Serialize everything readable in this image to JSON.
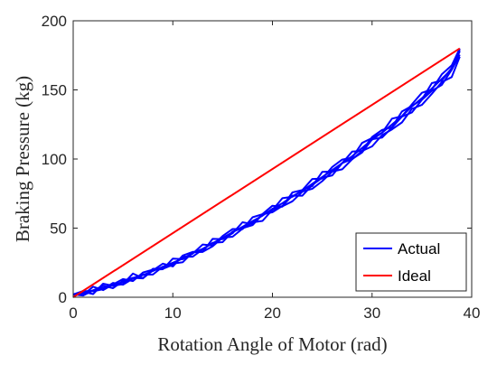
{
  "chart_data": {
    "type": "line",
    "title": "",
    "xlabel": "Rotation Angle of Motor (rad)",
    "ylabel": "Braking Pressure (kg)",
    "xlim": [
      0,
      40
    ],
    "ylim": [
      0,
      200
    ],
    "xticks": [
      "0",
      "10",
      "20",
      "30",
      "40"
    ],
    "yticks": [
      "0",
      "50",
      "100",
      "150",
      "200"
    ],
    "grid": false,
    "legend_position": "bottom-right",
    "series": [
      {
        "name": "Actual",
        "color": "#0000ff",
        "x": [
          0,
          1,
          2,
          3,
          4,
          5,
          6,
          7,
          8,
          9,
          10,
          11,
          12,
          13,
          14,
          15,
          16,
          17,
          18,
          19,
          20,
          21,
          22,
          23,
          24,
          25,
          26,
          27,
          28,
          29,
          30,
          31,
          32,
          33,
          34,
          35,
          36,
          37,
          38,
          38.8
        ],
        "y": [
          2,
          3,
          5,
          7,
          9,
          11,
          14,
          16,
          19,
          22,
          25,
          28,
          32,
          35,
          39,
          43,
          47,
          51,
          55,
          59,
          64,
          68,
          73,
          77,
          82,
          87,
          92,
          97,
          102,
          108,
          114,
          119,
          125,
          131,
          138,
          144,
          151,
          158,
          165,
          178
        ]
      },
      {
        "name": "Ideal",
        "color": "#ff0000",
        "x": [
          0,
          38.8
        ],
        "y": [
          0,
          180
        ]
      }
    ]
  }
}
